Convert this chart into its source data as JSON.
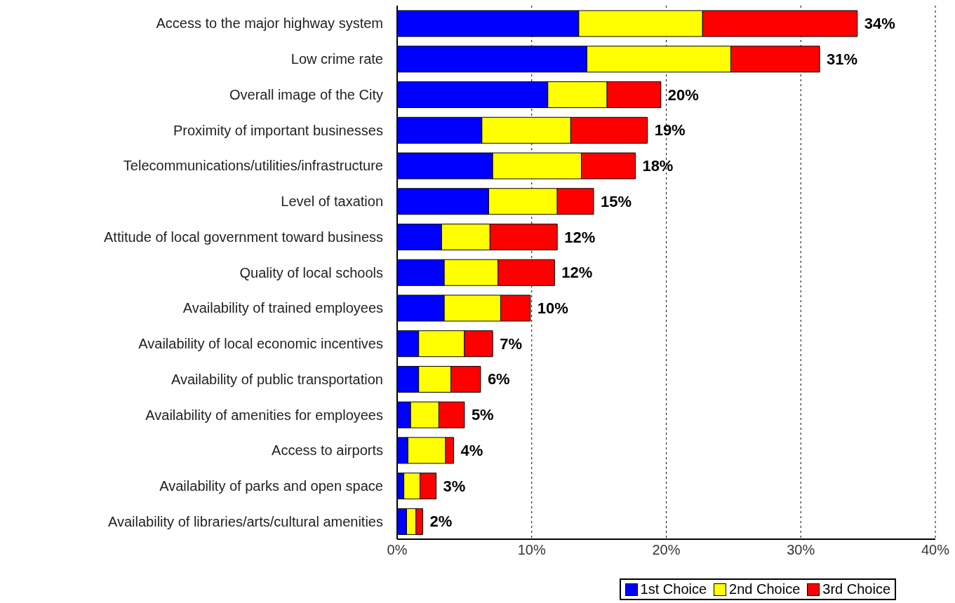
{
  "chart_data": {
    "type": "bar",
    "orientation": "horizontal",
    "stacked": true,
    "categories": [
      "Access to the major highway system",
      "Low crime rate",
      "Overall image of the City",
      "Proximity of important businesses",
      "Telecommunications/utilities/infrastructure",
      "Level of taxation",
      "Attitude of local government toward business",
      "Quality of local schools",
      "Availability of trained employees",
      "Availability of local economic incentives",
      "Availability of public transportation",
      "Availability of amenities for employees",
      "Access to airports",
      "Availability of parks and open space",
      "Availability of libraries/arts/cultural amenities"
    ],
    "series": [
      {
        "name": "1st Choice",
        "color": "#0000ff",
        "values": [
          13.5,
          14.1,
          11.2,
          6.3,
          7.1,
          6.8,
          3.3,
          3.5,
          3.5,
          1.6,
          1.6,
          1.0,
          0.8,
          0.5,
          0.7
        ]
      },
      {
        "name": "2nd Choice",
        "color": "#ffff00",
        "values": [
          9.2,
          10.7,
          4.4,
          6.6,
          6.6,
          5.1,
          3.6,
          4.0,
          4.2,
          3.4,
          2.4,
          2.1,
          2.8,
          1.2,
          0.7
        ]
      },
      {
        "name": "3rd Choice",
        "color": "#ff0000",
        "values": [
          11.5,
          6.6,
          4.0,
          5.7,
          4.0,
          2.7,
          5.0,
          4.2,
          2.2,
          2.1,
          2.2,
          1.9,
          0.6,
          1.2,
          0.5
        ]
      }
    ],
    "totals": [
      "34%",
      "31%",
      "20%",
      "19%",
      "18%",
      "15%",
      "12%",
      "12%",
      "10%",
      "7%",
      "6%",
      "5%",
      "4%",
      "3%",
      "2%"
    ],
    "xlim": [
      0,
      40
    ],
    "xticks": [
      {
        "value": 0,
        "label": "0%"
      },
      {
        "value": 10,
        "label": "10%"
      },
      {
        "value": 20,
        "label": "20%"
      },
      {
        "value": 30,
        "label": "30%"
      },
      {
        "value": 40,
        "label": "40%"
      }
    ],
    "grid": "x",
    "line_style": "dotted",
    "legend": "bottom right"
  }
}
